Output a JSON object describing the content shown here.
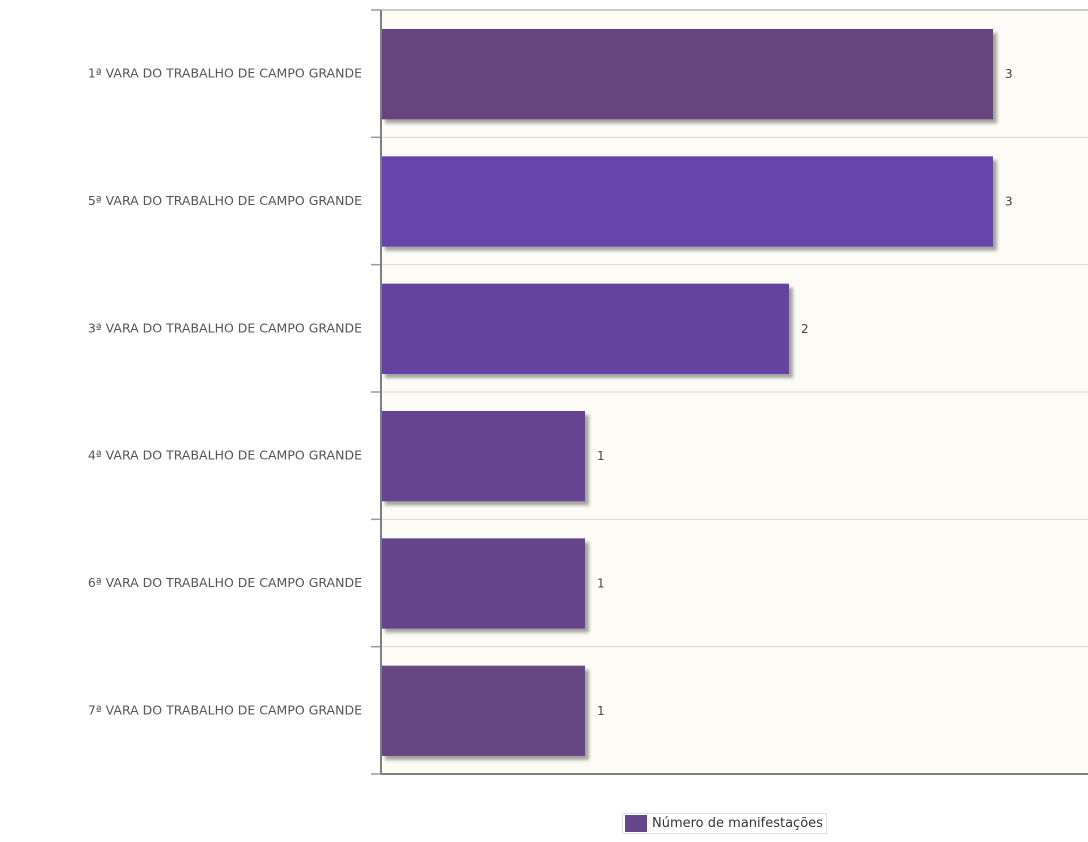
{
  "chart_data": {
    "type": "bar",
    "orientation": "horizontal",
    "categories": [
      "1ª VARA DO TRABALHO DE CAMPO GRANDE",
      "5ª VARA DO TRABALHO DE CAMPO GRANDE",
      "3ª VARA DO TRABALHO DE CAMPO GRANDE",
      "4ª VARA DO TRABALHO DE CAMPO GRANDE",
      "6ª VARA DO TRABALHO DE CAMPO GRANDE",
      "7ª VARA DO TRABALHO DE CAMPO GRANDE"
    ],
    "series": [
      {
        "name": "Número de manifestações",
        "values": [
          3,
          3,
          2,
          1,
          1,
          1
        ]
      }
    ],
    "data_labels": [
      "3",
      "3",
      "2",
      "1",
      "1",
      "1"
    ],
    "bar_colors": [
      "#66447f",
      "#6645aa",
      "#6445a0",
      "#654590",
      "#65458a",
      "#664682"
    ],
    "legend_color": "#65478a",
    "plot_background": "#fdfbf5",
    "xlim": [
      0,
      3.5
    ],
    "grid": true,
    "legend_position": "bottom"
  }
}
